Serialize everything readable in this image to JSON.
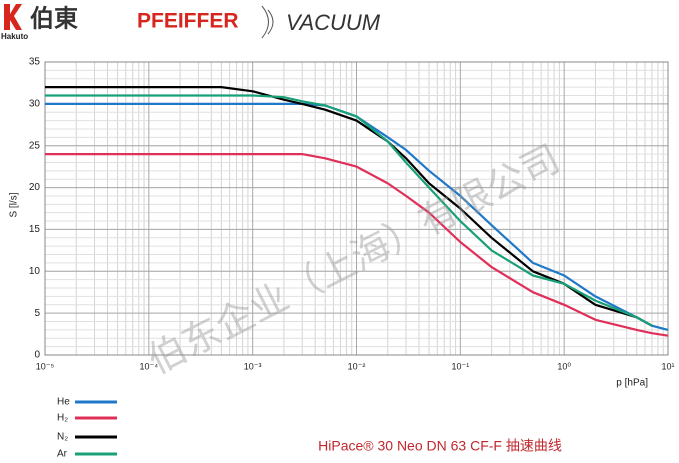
{
  "header": {
    "logo_text": "伯東",
    "logo_sub": "Hakuto",
    "brand": "PFEIFFER",
    "brand2": "VACUUM"
  },
  "watermark": "伯东企业（上海）有限公司",
  "chart_data": {
    "type": "line",
    "title": "HiPace® 30 Neo DN 63 CF-F 抽速曲线",
    "x_label": "p [hPa]",
    "y_label": "S [l/s]",
    "xscale": "log",
    "grid": true,
    "x": [
      1e-05,
      0.0001,
      0.0005,
      0.001,
      0.002,
      0.003,
      0.005,
      0.01,
      0.02,
      0.03,
      0.05,
      0.1,
      0.2,
      0.5,
      1,
      2,
      5,
      7,
      10
    ],
    "series": [
      {
        "name": "He",
        "color": "#1f78c8",
        "values": [
          30,
          30,
          30,
          30,
          30,
          30,
          29.8,
          28.5,
          26,
          24.5,
          22,
          19,
          15.5,
          11,
          9.5,
          7,
          4.5,
          3.5,
          3
        ]
      },
      {
        "name": "H₂",
        "color": "#e0305a",
        "values": [
          24,
          24,
          24,
          24,
          24,
          24,
          23.5,
          22.5,
          20.5,
          19,
          17,
          13.5,
          10.5,
          7.5,
          6,
          4.2,
          3,
          2.6,
          2.3
        ]
      },
      {
        "name": "N₂",
        "color": "#000000",
        "values": [
          32,
          32,
          32,
          31.5,
          30.5,
          30,
          29.3,
          28,
          25.5,
          23.5,
          20.5,
          17.5,
          14,
          10,
          8.5,
          6,
          4.5,
          3.5,
          null
        ]
      },
      {
        "name": "Ar",
        "color": "#18a078",
        "values": [
          31,
          31,
          31,
          31,
          30.8,
          30.3,
          29.8,
          28.5,
          25.5,
          23,
          20,
          16,
          12.5,
          9.5,
          8.5,
          6.5,
          4.5,
          3.5,
          null
        ]
      }
    ],
    "xlim": [
      1e-05,
      10
    ],
    "xticks": [
      {
        "value": 1e-05,
        "label": "10⁻⁵"
      },
      {
        "value": 0.0001,
        "label": "10⁻⁴"
      },
      {
        "value": 0.001,
        "label": "10⁻³"
      },
      {
        "value": 0.01,
        "label": "10⁻²"
      },
      {
        "value": 0.1,
        "label": "10⁻¹"
      },
      {
        "value": 1,
        "label": "10⁰"
      },
      {
        "value": 10,
        "label": "10¹"
      }
    ],
    "ylim": [
      0,
      35
    ],
    "yticks": [
      0,
      5,
      10,
      15,
      20,
      25,
      30,
      35
    ]
  }
}
